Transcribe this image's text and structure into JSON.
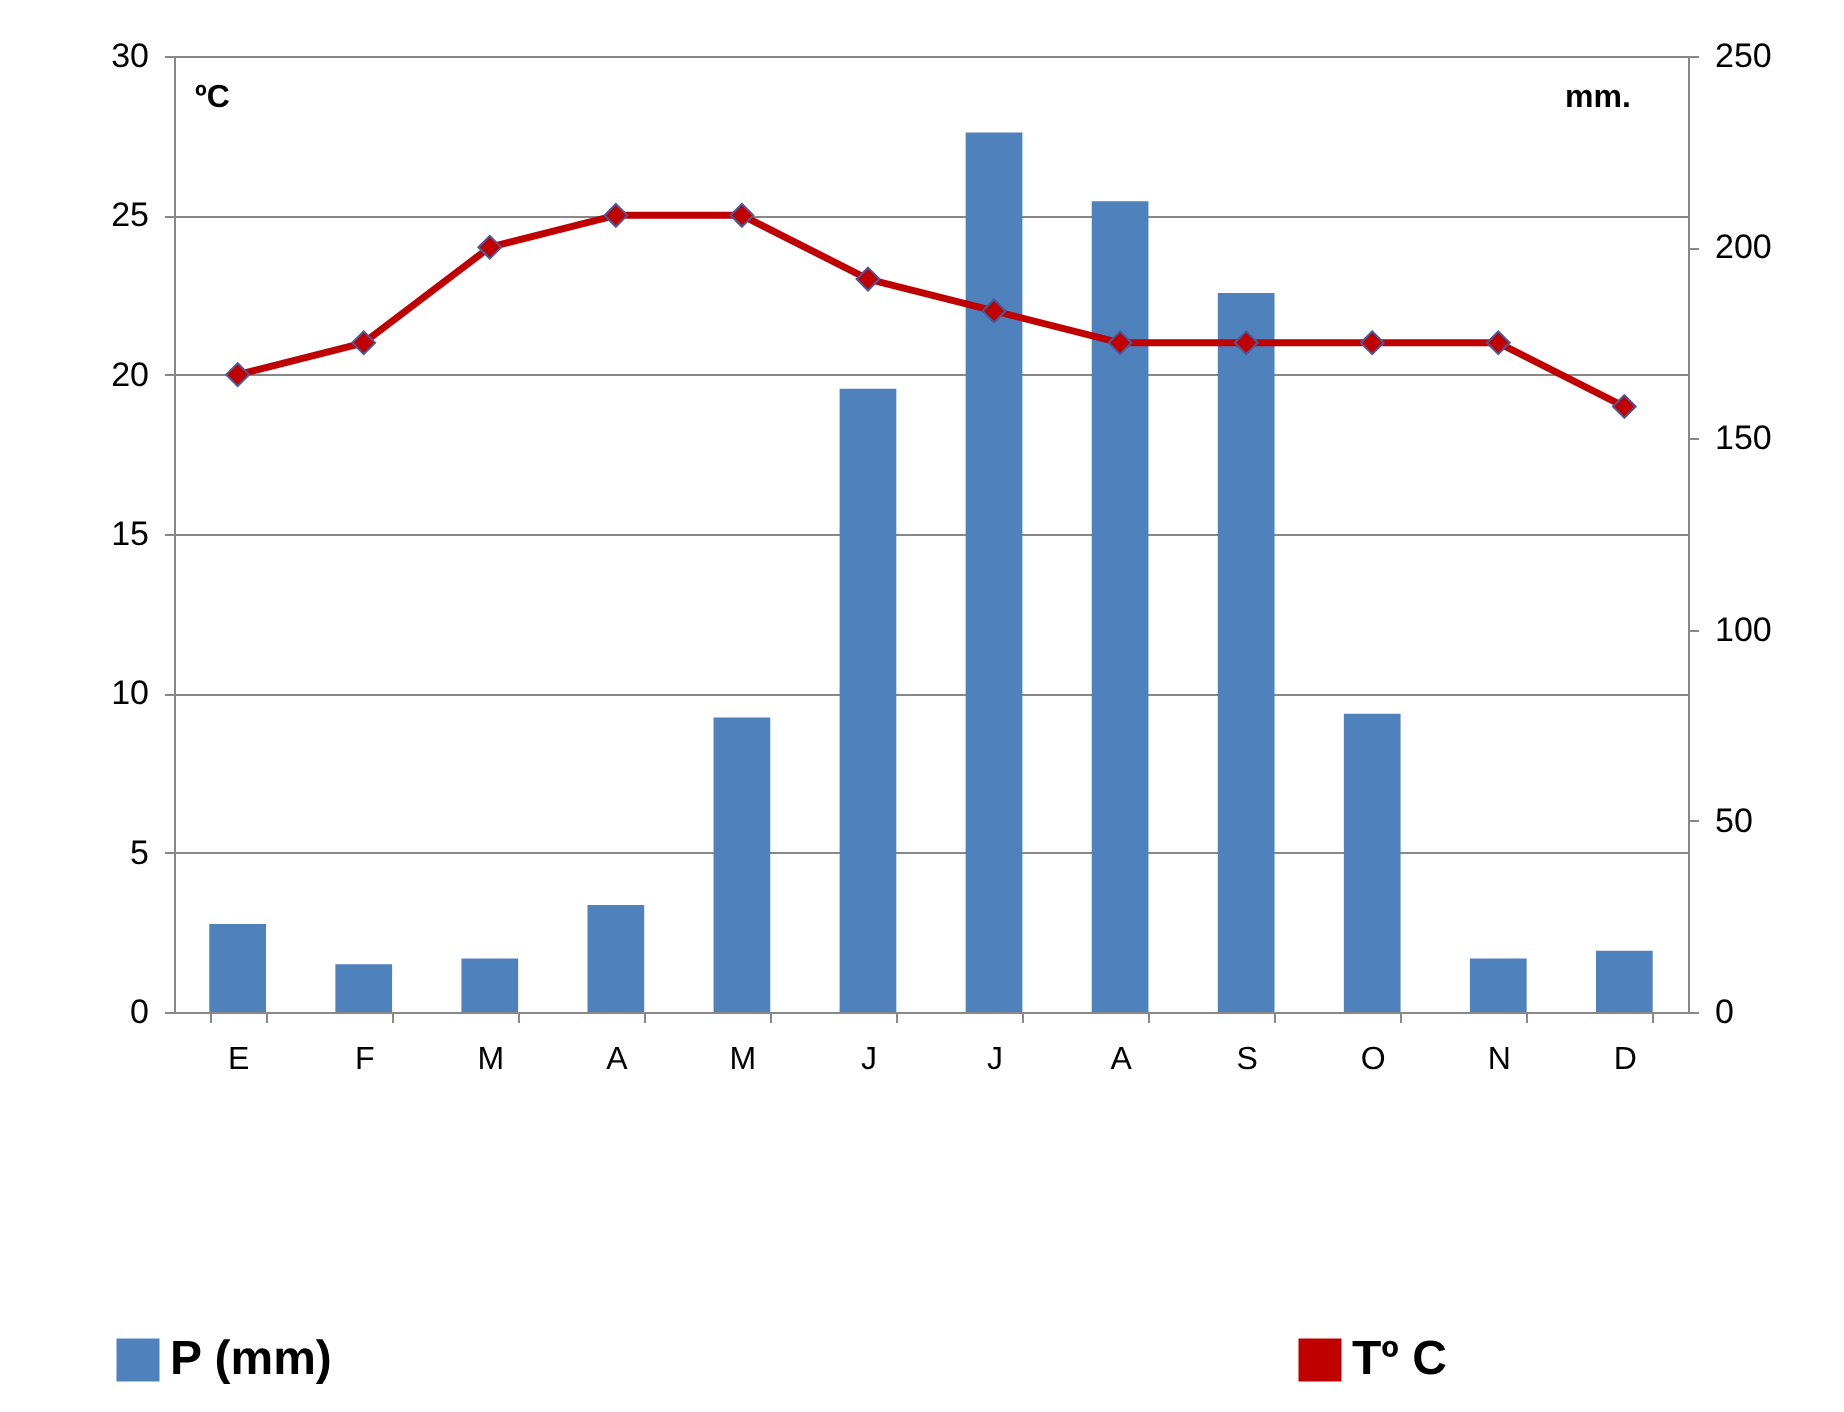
{
  "chart_data": {
    "type": "bar",
    "categories": [
      "E",
      "F",
      "M",
      "A",
      "M",
      "J",
      "J",
      "A",
      "S",
      "O",
      "N",
      "D"
    ],
    "series": [
      {
        "name": "P (mm)",
        "axis": "y2",
        "color": "#4f81bd",
        "values": [
          23,
          12.5,
          14,
          28,
          77,
          163,
          230,
          212,
          188,
          78,
          14,
          16
        ]
      },
      {
        "name": "Tº C",
        "type": "line",
        "color": "#c00000",
        "values": [
          20,
          21,
          24,
          25,
          25,
          23,
          22,
          21,
          21,
          21,
          21,
          19
        ]
      }
    ],
    "ylabel": "ºC",
    "y2label": "mm.",
    "ylim": [
      0,
      30
    ],
    "yticks": [
      0,
      5,
      10,
      15,
      20,
      25,
      30
    ],
    "y2lim": [
      0,
      250
    ],
    "y2ticks": [
      0,
      50,
      100,
      150,
      200,
      250
    ],
    "grid": "y",
    "legend": "bottom",
    "marker": "diamond",
    "line_style": "solid"
  }
}
